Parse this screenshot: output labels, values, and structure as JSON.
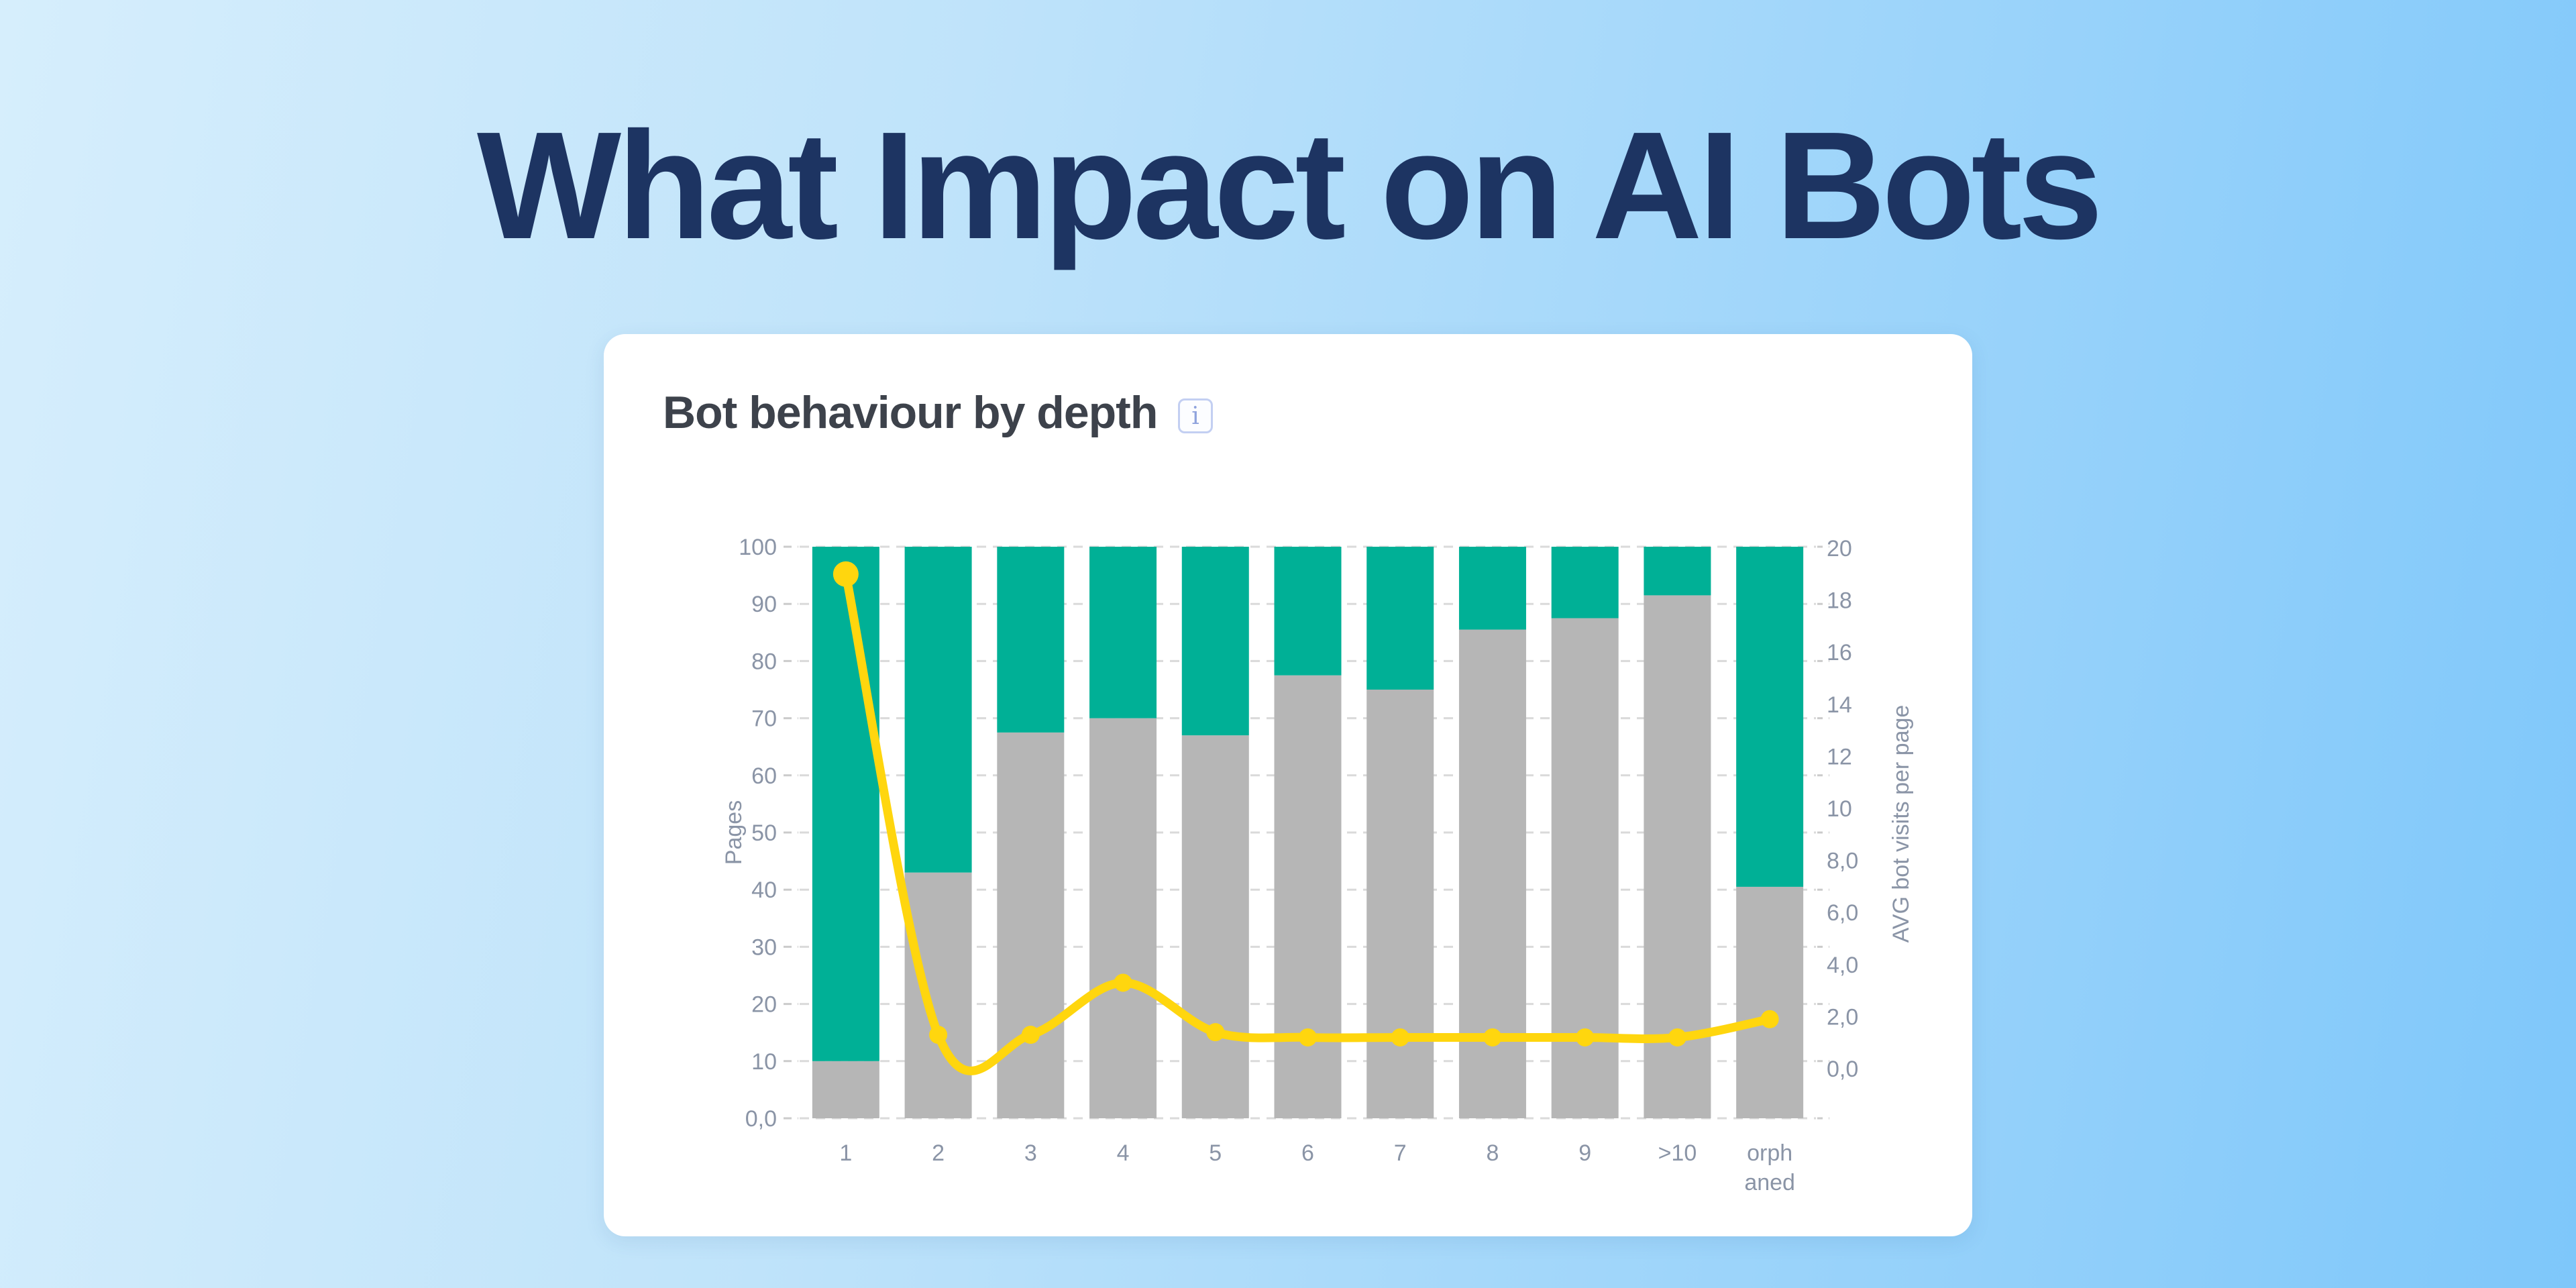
{
  "page": {
    "title": "What Impact on AI Bots"
  },
  "card": {
    "title": "Bot behaviour by depth",
    "info_glyph": "i"
  },
  "colors": {
    "background_gradient": [
      "#d6eefc",
      "#7ec7fa"
    ],
    "page_title": "#1d3462",
    "card_background": "#ffffff",
    "card_title": "#3d424b",
    "info_icon_border": "#c3cff2",
    "info_icon_glyph": "#8fa3dd",
    "grid": "#dadada",
    "tick": "#cbcbcb",
    "axis_text": "#8a94a6",
    "bar_gray": "#b6b6b6",
    "bar_green": "#00b096",
    "line_yellow": "#ffd60e"
  },
  "chart_data": {
    "type": "combo",
    "title": "Bot behaviour by depth",
    "categories": [
      "1",
      "2",
      "3",
      "4",
      "5",
      "6",
      "7",
      "8",
      "9",
      ">10",
      "orphaned"
    ],
    "left_axis": {
      "label": "Pages",
      "range": [
        0,
        100
      ],
      "tick_step": 10,
      "tick_labels": [
        "0,0",
        "10",
        "20",
        "30",
        "40",
        "50",
        "60",
        "70",
        "80",
        "90",
        "100"
      ]
    },
    "right_axis": {
      "label": "AVG bot visits per page",
      "range": [
        0,
        20
      ],
      "tick_step": 2,
      "tick_labels": [
        "0,0",
        "2,0",
        "4,0",
        "6,0",
        "8,0",
        "10",
        "12",
        "14",
        "16",
        "18",
        "20"
      ]
    },
    "grid": "horizontal-dashed",
    "legend": "none",
    "series": [
      {
        "id": "gray-bar-segment",
        "type": "bar",
        "stacked": true,
        "axis": "left",
        "color": "#b6b6b6",
        "values": [
          10,
          43,
          67.5,
          70,
          67,
          77.5,
          75,
          85.5,
          87.5,
          91.5,
          40.5
        ]
      },
      {
        "id": "green-bar-segment",
        "type": "bar",
        "stacked": true,
        "axis": "left",
        "color": "#00b096",
        "values": [
          90,
          57,
          32.5,
          30,
          33,
          22.5,
          25,
          14.5,
          12.5,
          8.5,
          59.5
        ]
      },
      {
        "id": "avg-bot-visits-line",
        "type": "line",
        "axis": "right",
        "color": "#ffd60e",
        "values": [
          19,
          1.3,
          1.3,
          3.3,
          1.4,
          1.2,
          1.2,
          1.2,
          1.2,
          1.2,
          1.9
        ]
      }
    ]
  }
}
